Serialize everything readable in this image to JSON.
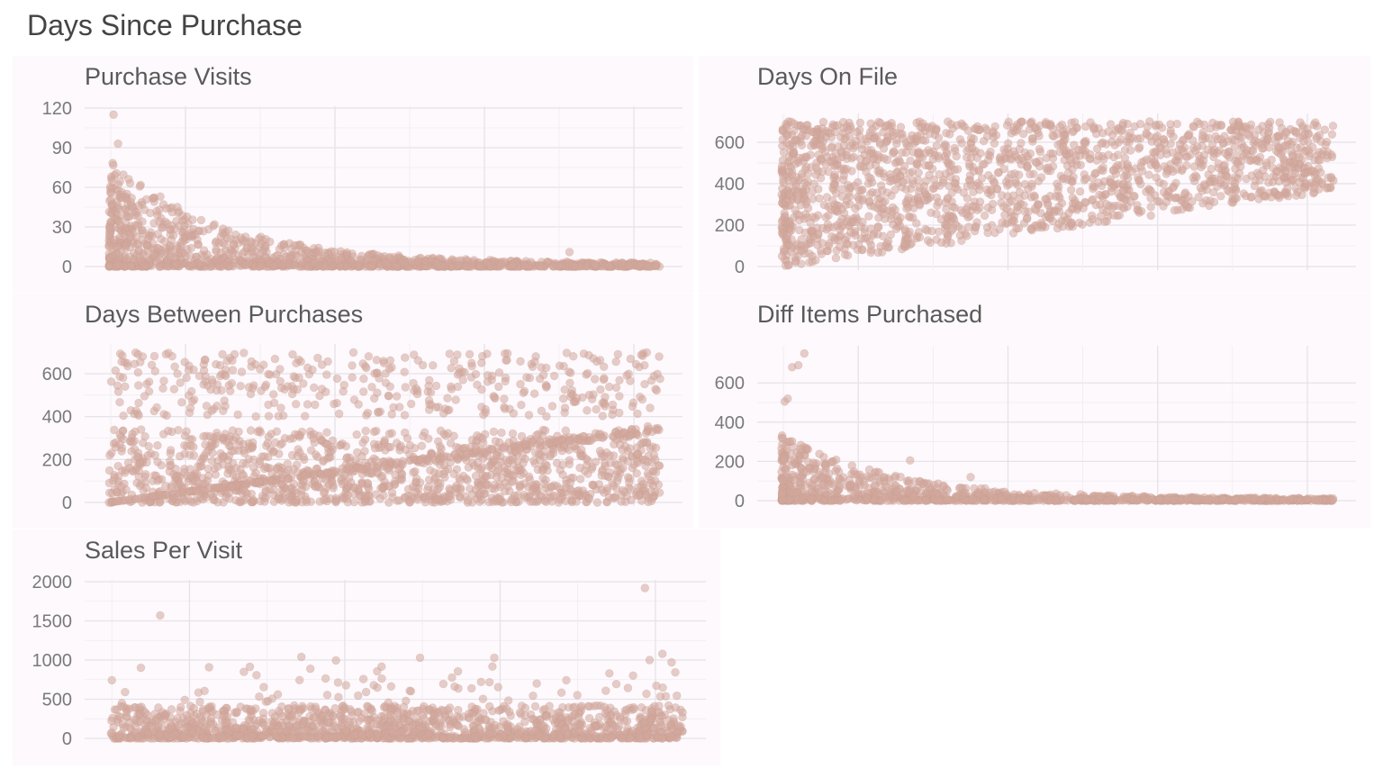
{
  "page": {
    "title": "Days Since Purchase"
  },
  "colors": {
    "point": "#d1a89d",
    "panel_bg": "#fdf9fc",
    "grid": "#e6e3e8"
  },
  "chart_data": [
    {
      "type": "scatter",
      "title": "Purchase Visits",
      "xlabel": "",
      "ylabel": "",
      "xlim": [
        0,
        365
      ],
      "ylim": [
        0,
        120
      ],
      "yticks": [
        0,
        30,
        60,
        90,
        120
      ],
      "xtick_labels": [],
      "grid": true,
      "pattern": {
        "shape": "decay",
        "max_y_near_zero": 80,
        "outliers": [
          [
            3,
            115
          ],
          [
            6,
            93
          ],
          [
            14,
            63
          ],
          [
            34,
            53
          ],
          [
            38,
            44
          ],
          [
            305,
            11
          ]
        ]
      }
    },
    {
      "type": "scatter",
      "title": "Days On File",
      "xlabel": "",
      "ylabel": "",
      "xlim": [
        0,
        365
      ],
      "ylim": [
        0,
        730
      ],
      "yticks": [
        0,
        200,
        400,
        600
      ],
      "xtick_labels": [],
      "grid": true,
      "pattern": {
        "shape": "wedge",
        "lower_bound": "y = x",
        "upper_bound": 700
      }
    },
    {
      "type": "scatter",
      "title": "Days Between Purchases",
      "xlabel": "",
      "ylabel": "",
      "xlim": [
        0,
        365
      ],
      "ylim": [
        0,
        730
      ],
      "yticks": [
        0,
        200,
        400,
        600
      ],
      "xtick_labels": [],
      "grid": true,
      "pattern": {
        "shape": "band_plus_diagonal",
        "band_max": 340,
        "upper_cloud": [
          400,
          700
        ]
      }
    },
    {
      "type": "scatter",
      "title": "Diff Items Purchased",
      "xlabel": "",
      "ylabel": "",
      "xlim": [
        0,
        365
      ],
      "ylim": [
        0,
        780
      ],
      "yticks": [
        0,
        200,
        400,
        600
      ],
      "xtick_labels": [],
      "grid": true,
      "pattern": {
        "shape": "decay",
        "max_y_near_zero": 330,
        "outliers": [
          [
            2,
            505
          ],
          [
            4,
            520
          ],
          [
            7,
            680
          ],
          [
            11,
            690
          ],
          [
            15,
            750
          ],
          [
            85,
            205
          ],
          [
            125,
            120
          ]
        ]
      }
    },
    {
      "type": "scatter",
      "title": "Sales Per Visit",
      "xlabel": "",
      "ylabel": "",
      "xlim": [
        0,
        365
      ],
      "ylim": [
        0,
        2000
      ],
      "yticks": [
        0,
        500,
        1000,
        1500,
        2000
      ],
      "xtick_labels": [],
      "grid": true,
      "pattern": {
        "shape": "flat_band",
        "band_max": 420,
        "outliers": [
          [
            32,
            1570
          ],
          [
            341,
            1920
          ],
          [
            122,
            1040
          ],
          [
            245,
            1030
          ],
          [
            344,
            1000
          ],
          [
            358,
            970
          ],
          [
            272,
            700
          ]
        ]
      }
    }
  ]
}
